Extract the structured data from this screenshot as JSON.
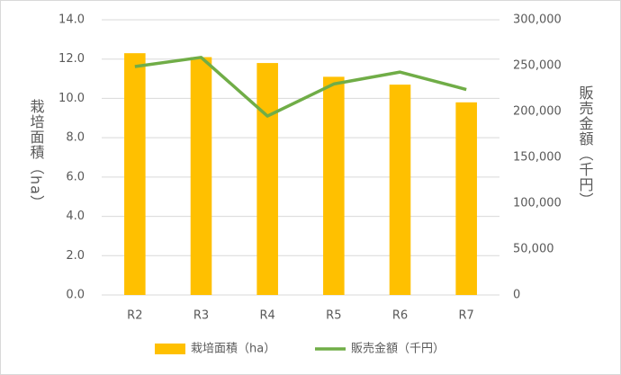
{
  "chart_data": {
    "type": "bar",
    "categories": [
      "R2",
      "R3",
      "R4",
      "R5",
      "R6",
      "R7"
    ],
    "series": [
      {
        "name": "栽培面積（ha）",
        "type": "bar",
        "color": "#ffc000",
        "values": [
          12.3,
          12.1,
          11.8,
          11.1,
          10.7,
          9.8
        ]
      },
      {
        "name": "販売金額（千円）",
        "type": "line",
        "axis": "y2",
        "color": "#70ad47",
        "values": [
          249000,
          259000,
          195000,
          230000,
          243000,
          224000
        ]
      }
    ],
    "ylabel": "栽培面積（ha）",
    "y2label": "販売金額（千円）",
    "ylim": [
      0,
      14
    ],
    "yticks": [
      {
        "value": 0,
        "label": "0.0"
      },
      {
        "value": 2,
        "label": "2.0"
      },
      {
        "value": 4,
        "label": "4.0"
      },
      {
        "value": 6,
        "label": "6.0"
      },
      {
        "value": 8,
        "label": "8.0"
      },
      {
        "value": 10,
        "label": "10.0"
      },
      {
        "value": 12,
        "label": "12.0"
      },
      {
        "value": 14,
        "label": "14.0"
      }
    ],
    "y2lim": [
      0,
      300000
    ],
    "y2ticks": [
      0,
      {
        "value": 50000,
        "label": "50,000"
      },
      {
        "value": 100000,
        "label": "100,000"
      },
      {
        "value": 150000,
        "label": "150,000"
      },
      {
        "value": 200000,
        "label": "200,000"
      },
      {
        "value": 250000,
        "label": "250,000"
      },
      {
        "value": 300000,
        "label": "300,000"
      }
    ],
    "grid": true,
    "legend": "bottom"
  }
}
